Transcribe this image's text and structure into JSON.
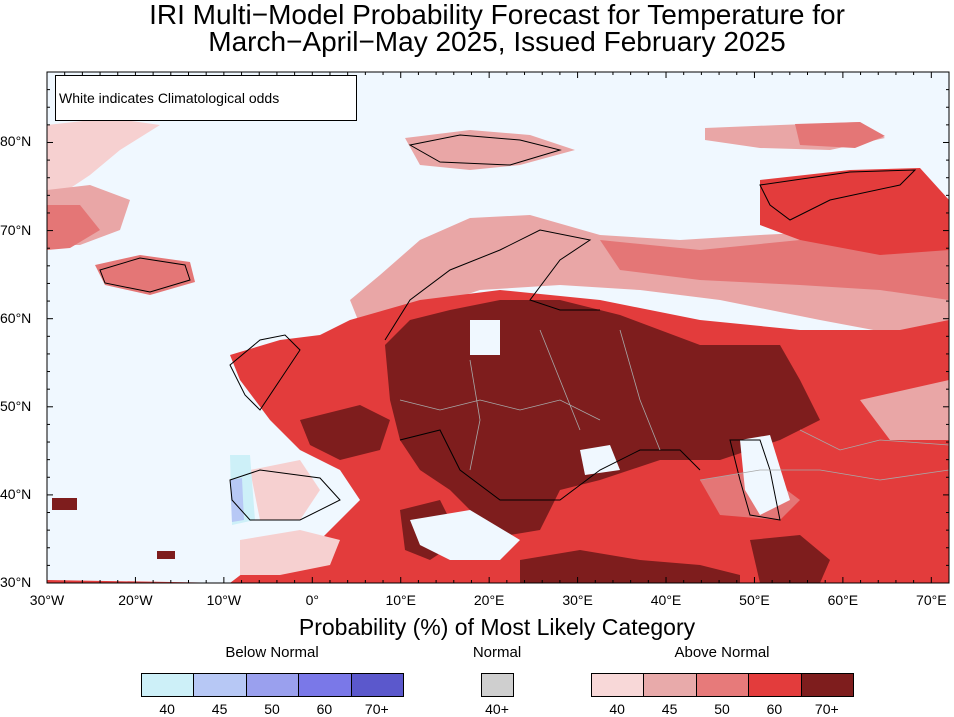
{
  "title": {
    "line1": "IRI Multi−Model Probability Forecast for Temperature for",
    "line2": "March−April−May 2025, Issued February 2025"
  },
  "note": "White indicates Climatological odds",
  "axes": {
    "lat_labels": [
      "80°N",
      "70°N",
      "60°N",
      "50°N",
      "40°N",
      "30°N"
    ],
    "lon_labels": [
      "30°W",
      "20°W",
      "10°W",
      "0°",
      "10°E",
      "20°E",
      "30°E",
      "40°E",
      "50°E",
      "60°E",
      "70°E"
    ],
    "lon_range": [
      -30,
      72
    ],
    "lat_range": [
      30,
      88
    ]
  },
  "legend": {
    "title": "Probability (%) of Most Likely Category",
    "categories": [
      {
        "name": "Below Normal",
        "colors": [
          "#cdf0f8",
          "#b7c8f5",
          "#9aa0ee",
          "#7a78e8",
          "#5b58cc"
        ],
        "labels": [
          "40",
          "45",
          "50",
          "60",
          "70+"
        ]
      },
      {
        "name": "Normal",
        "colors": [
          "#cfcfcf"
        ],
        "labels": [
          "40+"
        ]
      },
      {
        "name": "Above Normal",
        "colors": [
          "#f8d8d8",
          "#e8aaaa",
          "#e77a7a",
          "#e33c3c",
          "#7e1d1d"
        ],
        "labels": [
          "40",
          "45",
          "50",
          "60",
          "70+"
        ]
      }
    ]
  },
  "colors": {
    "ocean_background": "#f0f8ff",
    "coastline": "#000000",
    "borders": "#a8a8a8"
  }
}
